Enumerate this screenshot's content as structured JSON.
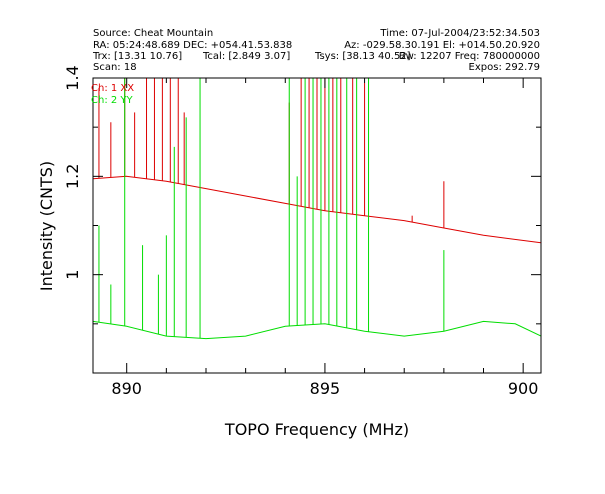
{
  "header": {
    "source": "Source: Cheat Mountain",
    "time": "Time: 07-Jul-2004/23:52:34.503",
    "radec": "RA: 05:24:48.689 DEC: +054.41.53.838",
    "azel": "Az: -029.58.30.191 El: +014.50.20.920",
    "trx": "Trx: [13.31 10.76]",
    "tcal": "Tcal: [2.849 3.07]",
    "tsys": "Tsys: [38.13 40.52]",
    "freq": "Bw: 12207 Freq: 780000000",
    "scan": "Scan: 18",
    "expos": "Expos: 292.79"
  },
  "chart_data": {
    "type": "line",
    "xlabel": "TOPO Frequency (MHz)",
    "ylabel": "Intensity (CNTS)",
    "xlim": [
      889.15,
      900.45
    ],
    "ylim": [
      0.8,
      1.4
    ],
    "xticks": [
      {
        "value": 890,
        "label": "890"
      },
      {
        "value": 895,
        "label": "895"
      },
      {
        "value": 900,
        "label": "900"
      }
    ],
    "yticks": [
      {
        "value": 1.0,
        "label": "1"
      },
      {
        "value": 1.2,
        "label": "1.2"
      },
      {
        "value": 1.4,
        "label": "1.4"
      }
    ],
    "series": [
      {
        "name": "Ch: 1 XX",
        "color": "#dd0000",
        "points": [
          [
            889.15,
            1.195
          ],
          [
            890.0,
            1.2
          ],
          [
            891.0,
            1.19
          ],
          [
            892.0,
            1.175
          ],
          [
            893.0,
            1.16
          ],
          [
            894.0,
            1.145
          ],
          [
            895.0,
            1.13
          ],
          [
            896.0,
            1.12
          ],
          [
            897.0,
            1.11
          ],
          [
            898.0,
            1.095
          ],
          [
            899.0,
            1.08
          ],
          [
            900.45,
            1.065
          ]
        ],
        "spikes": [
          [
            889.3,
            1.38
          ],
          [
            889.6,
            1.31
          ],
          [
            889.95,
            1.4
          ],
          [
            890.2,
            1.33
          ],
          [
            890.5,
            1.4
          ],
          [
            890.7,
            1.4
          ],
          [
            890.9,
            1.4
          ],
          [
            891.1,
            1.4
          ],
          [
            891.3,
            1.4
          ],
          [
            891.45,
            1.33
          ],
          [
            894.1,
            1.35
          ],
          [
            894.4,
            1.4
          ],
          [
            894.6,
            1.4
          ],
          [
            894.8,
            1.4
          ],
          [
            895.0,
            1.4
          ],
          [
            895.2,
            1.4
          ],
          [
            895.4,
            1.4
          ],
          [
            895.7,
            1.4
          ],
          [
            896.0,
            1.39
          ],
          [
            897.2,
            1.12
          ],
          [
            898.0,
            1.19
          ]
        ]
      },
      {
        "name": "Ch: 2 YY",
        "color": "#00dd00",
        "points": [
          [
            889.15,
            0.905
          ],
          [
            890.0,
            0.895
          ],
          [
            891.0,
            0.875
          ],
          [
            892.0,
            0.87
          ],
          [
            893.0,
            0.875
          ],
          [
            894.0,
            0.895
          ],
          [
            895.0,
            0.9
          ],
          [
            896.0,
            0.885
          ],
          [
            897.0,
            0.875
          ],
          [
            898.0,
            0.885
          ],
          [
            899.0,
            0.905
          ],
          [
            899.8,
            0.9
          ],
          [
            900.45,
            0.875
          ]
        ],
        "spikes": [
          [
            889.3,
            1.1
          ],
          [
            889.6,
            0.98
          ],
          [
            889.95,
            1.4
          ],
          [
            890.4,
            1.06
          ],
          [
            890.8,
            1.0
          ],
          [
            891.0,
            1.08
          ],
          [
            891.2,
            1.26
          ],
          [
            891.5,
            1.32
          ],
          [
            891.85,
            1.4
          ],
          [
            894.1,
            1.4
          ],
          [
            894.3,
            1.2
          ],
          [
            894.5,
            1.4
          ],
          [
            894.7,
            1.4
          ],
          [
            894.9,
            1.4
          ],
          [
            895.1,
            1.4
          ],
          [
            895.3,
            1.4
          ],
          [
            895.55,
            1.4
          ],
          [
            895.8,
            1.4
          ],
          [
            896.1,
            1.4
          ],
          [
            898.0,
            1.05
          ]
        ]
      }
    ]
  }
}
